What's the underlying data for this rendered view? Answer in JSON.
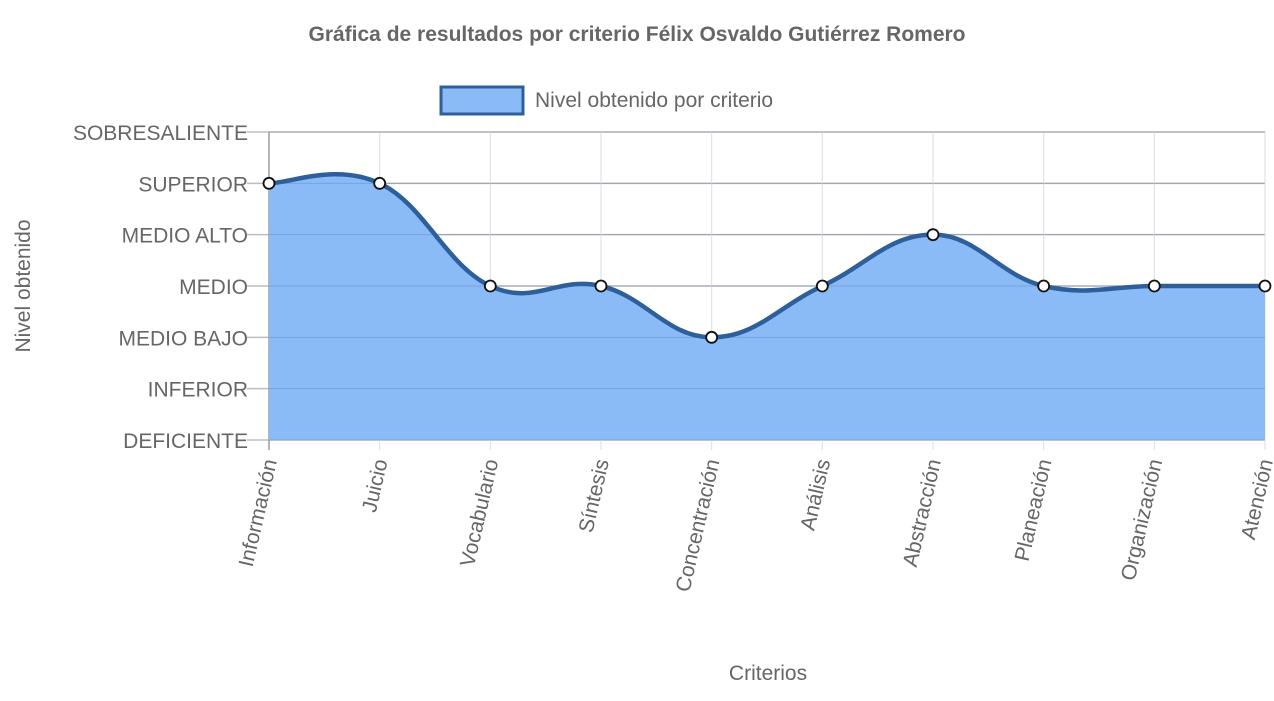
{
  "chart_data": {
    "type": "area",
    "title": "Gráfica de resultados por criterio Félix Osvaldo Gutiérrez Romero",
    "xlabel": "Criterios",
    "ylabel": "Nivel obtenido",
    "categories": [
      "Información",
      "Juicio",
      "Vocabulario",
      "Síntesis",
      "Concentración",
      "Análisis",
      "Abstracción",
      "Planeación",
      "Organización",
      "Atención"
    ],
    "levels": [
      "DEFICIENTE",
      "INFERIOR",
      "MEDIO BAJO",
      "MEDIO",
      "MEDIO ALTO",
      "SUPERIOR",
      "SOBRESALIENTE"
    ],
    "ylim": [
      0,
      6
    ],
    "series": [
      {
        "name": "Nivel obtenido por criterio",
        "values": [
          5,
          5,
          3,
          3,
          2,
          3,
          4,
          3,
          3,
          3
        ],
        "value_labels": [
          "SUPERIOR",
          "SUPERIOR",
          "MEDIO",
          "MEDIO",
          "MEDIO BAJO",
          "MEDIO",
          "MEDIO ALTO",
          "MEDIO",
          "MEDIO",
          "MEDIO"
        ],
        "fill_color": "#8bbbf7",
        "line_color": "#2f5f9b"
      }
    ],
    "grid": true,
    "legend_position": "top",
    "curve": "smooth"
  }
}
